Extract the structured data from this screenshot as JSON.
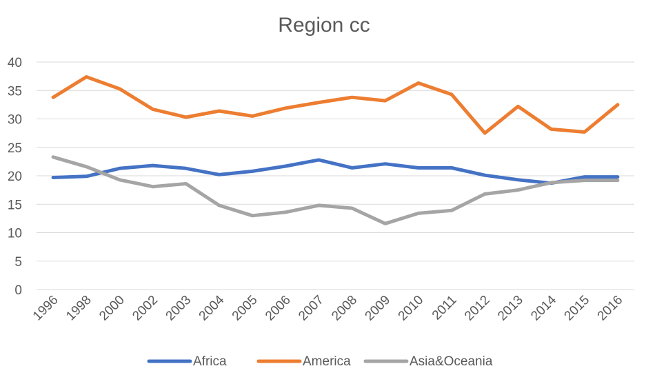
{
  "chart_data": {
    "type": "line",
    "title": "Region cc",
    "xlabel": "",
    "ylabel": "",
    "categories": [
      "1996",
      "1998",
      "2000",
      "2002",
      "2003",
      "2004",
      "2005",
      "2006",
      "2007",
      "2008",
      "2009",
      "2010",
      "2011",
      "2012",
      "2013",
      "2014",
      "2015",
      "2016"
    ],
    "ylim": [
      0,
      40
    ],
    "yticks": [
      0,
      5,
      10,
      15,
      20,
      25,
      30,
      35,
      40
    ],
    "grid": true,
    "legend_position": "bottom",
    "series": [
      {
        "name": "Africa",
        "color": "#4472c4",
        "values": [
          19.7,
          19.9,
          21.3,
          21.8,
          21.3,
          20.2,
          20.8,
          21.7,
          22.8,
          21.4,
          22.1,
          21.4,
          21.4,
          20.1,
          19.3,
          18.7,
          19.8,
          19.8
        ]
      },
      {
        "name": "America",
        "color": "#ed7d31",
        "values": [
          33.8,
          37.4,
          35.3,
          31.7,
          30.3,
          31.4,
          30.5,
          31.9,
          32.9,
          33.8,
          33.2,
          36.3,
          34.3,
          27.5,
          32.2,
          28.2,
          27.7,
          32.5
        ]
      },
      {
        "name": "Asia&Oceania",
        "color": "#a5a5a5",
        "values": [
          23.3,
          21.6,
          19.3,
          18.1,
          18.6,
          14.8,
          13.0,
          13.6,
          14.8,
          14.3,
          11.6,
          13.4,
          13.9,
          16.8,
          17.5,
          18.8,
          19.2,
          19.2
        ]
      }
    ]
  }
}
